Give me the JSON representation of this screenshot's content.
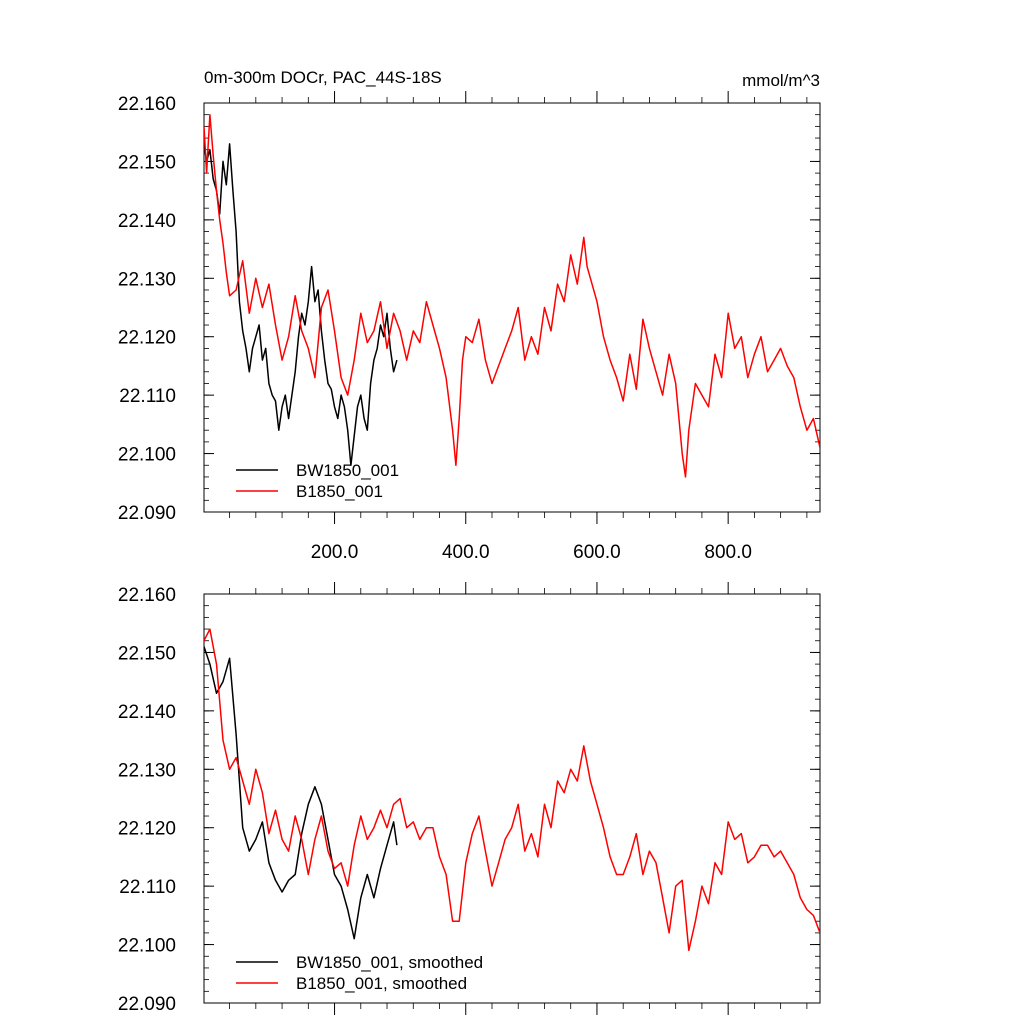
{
  "chart_data": [
    {
      "type": "line",
      "title": "0m-300m DOCr, PAC_44S-18S",
      "units": "mmol/m^3",
      "xlim": [
        1,
        940
      ],
      "ylim": [
        22.09,
        22.16
      ],
      "x_ticks": [
        "200.0",
        "400.0",
        "600.0",
        "800.0"
      ],
      "x_tick_values": [
        200,
        400,
        600,
        800
      ],
      "y_ticks": [
        "22.090",
        "22.100",
        "22.110",
        "22.120",
        "22.130",
        "22.140",
        "22.150",
        "22.160"
      ],
      "y_tick_values": [
        22.09,
        22.1,
        22.11,
        22.12,
        22.13,
        22.14,
        22.15,
        22.16
      ],
      "legend_position": "bottom-left",
      "series": [
        {
          "name": "BW1850_001",
          "color": "#000000",
          "x": [
            1,
            5,
            10,
            15,
            20,
            25,
            30,
            35,
            40,
            45,
            50,
            55,
            60,
            65,
            70,
            75,
            80,
            85,
            90,
            95,
            100,
            105,
            110,
            115,
            120,
            125,
            130,
            135,
            140,
            145,
            150,
            155,
            160,
            165,
            170,
            175,
            180,
            185,
            190,
            195,
            200,
            205,
            210,
            215,
            220,
            225,
            230,
            235,
            240,
            245,
            250,
            255,
            260,
            265,
            270,
            275,
            280,
            285,
            290,
            295
          ],
          "y": [
            22.153,
            22.15,
            22.152,
            22.147,
            22.145,
            22.141,
            22.15,
            22.146,
            22.153,
            22.145,
            22.138,
            22.126,
            22.121,
            22.118,
            22.114,
            22.118,
            22.12,
            22.122,
            22.116,
            22.118,
            22.112,
            22.11,
            22.109,
            22.104,
            22.108,
            22.11,
            22.106,
            22.11,
            22.114,
            22.12,
            22.124,
            22.122,
            22.126,
            22.132,
            22.126,
            22.128,
            22.121,
            22.116,
            22.112,
            22.111,
            22.108,
            22.106,
            22.11,
            22.108,
            22.104,
            22.098,
            22.103,
            22.108,
            22.11,
            22.106,
            22.104,
            22.112,
            22.116,
            22.118,
            22.122,
            22.12,
            22.124,
            22.118,
            22.114,
            22.116
          ]
        },
        {
          "name": "B1850_001",
          "color": "#ff0000",
          "x": [
            1,
            5,
            10,
            15,
            20,
            25,
            30,
            35,
            40,
            50,
            60,
            70,
            80,
            90,
            100,
            110,
            120,
            130,
            140,
            150,
            160,
            170,
            180,
            190,
            200,
            210,
            220,
            230,
            240,
            250,
            260,
            270,
            280,
            290,
            300,
            310,
            320,
            330,
            340,
            350,
            360,
            370,
            380,
            385,
            390,
            395,
            400,
            410,
            420,
            430,
            440,
            450,
            460,
            470,
            480,
            490,
            500,
            510,
            520,
            530,
            540,
            550,
            560,
            570,
            580,
            585,
            590,
            600,
            610,
            620,
            630,
            640,
            650,
            660,
            670,
            680,
            690,
            700,
            710,
            720,
            730,
            735,
            740,
            750,
            760,
            770,
            780,
            790,
            800,
            810,
            820,
            830,
            840,
            850,
            860,
            870,
            880,
            890,
            900,
            910,
            920,
            930,
            940
          ],
          "y": [
            22.156,
            22.148,
            22.158,
            22.151,
            22.145,
            22.14,
            22.136,
            22.131,
            22.127,
            22.128,
            22.133,
            22.124,
            22.13,
            22.125,
            22.129,
            22.122,
            22.116,
            22.12,
            22.127,
            22.121,
            22.118,
            22.113,
            22.125,
            22.128,
            22.121,
            22.113,
            22.11,
            22.116,
            22.124,
            22.119,
            22.121,
            22.126,
            22.118,
            22.124,
            22.121,
            22.116,
            22.121,
            22.119,
            22.126,
            22.122,
            22.118,
            22.113,
            22.104,
            22.098,
            22.106,
            22.116,
            22.12,
            22.119,
            22.123,
            22.116,
            22.112,
            22.115,
            22.118,
            22.121,
            22.125,
            22.116,
            22.12,
            22.117,
            22.125,
            22.121,
            22.129,
            22.126,
            22.134,
            22.129,
            22.137,
            22.132,
            22.13,
            22.126,
            22.12,
            22.116,
            22.113,
            22.109,
            22.117,
            22.111,
            22.123,
            22.118,
            22.114,
            22.11,
            22.117,
            22.112,
            22.1,
            22.096,
            22.104,
            22.112,
            22.11,
            22.108,
            22.117,
            22.113,
            22.124,
            22.118,
            22.12,
            22.113,
            22.117,
            22.12,
            22.114,
            22.116,
            22.118,
            22.115,
            22.113,
            22.108,
            22.104,
            22.106,
            22.101
          ]
        }
      ]
    },
    {
      "type": "line",
      "title": "",
      "xlim": [
        1,
        940
      ],
      "ylim": [
        22.09,
        22.16
      ],
      "y_ticks": [
        "22.090",
        "22.100",
        "22.110",
        "22.120",
        "22.130",
        "22.140",
        "22.150",
        "22.160"
      ],
      "y_tick_values": [
        22.09,
        22.1,
        22.11,
        22.12,
        22.13,
        22.14,
        22.15,
        22.16
      ],
      "legend_position": "bottom-left",
      "series": [
        {
          "name": "BW1850_001, smoothed",
          "color": "#000000",
          "x": [
            1,
            10,
            20,
            30,
            40,
            50,
            60,
            70,
            80,
            90,
            100,
            110,
            120,
            130,
            140,
            150,
            160,
            170,
            180,
            190,
            200,
            210,
            220,
            230,
            240,
            250,
            260,
            270,
            280,
            290,
            295
          ],
          "y": [
            22.151,
            22.148,
            22.143,
            22.145,
            22.149,
            22.136,
            22.12,
            22.116,
            22.118,
            22.121,
            22.114,
            22.111,
            22.109,
            22.111,
            22.112,
            22.119,
            22.124,
            22.127,
            22.124,
            22.118,
            22.112,
            22.11,
            22.106,
            22.101,
            22.108,
            22.112,
            22.108,
            22.113,
            22.117,
            22.121,
            22.117
          ]
        },
        {
          "name": "B1850_001, smoothed",
          "color": "#ff0000",
          "x": [
            1,
            10,
            20,
            30,
            40,
            50,
            60,
            70,
            80,
            90,
            100,
            110,
            120,
            130,
            140,
            150,
            160,
            170,
            180,
            190,
            200,
            210,
            220,
            230,
            240,
            250,
            260,
            270,
            280,
            290,
            300,
            310,
            320,
            330,
            340,
            350,
            360,
            370,
            380,
            390,
            400,
            410,
            420,
            430,
            440,
            450,
            460,
            470,
            480,
            490,
            500,
            510,
            520,
            530,
            540,
            550,
            560,
            570,
            580,
            590,
            600,
            610,
            620,
            630,
            640,
            650,
            660,
            670,
            680,
            690,
            700,
            710,
            720,
            730,
            740,
            750,
            760,
            770,
            780,
            790,
            800,
            810,
            820,
            830,
            840,
            850,
            860,
            870,
            880,
            890,
            900,
            910,
            920,
            930,
            940
          ],
          "y": [
            22.152,
            22.154,
            22.148,
            22.135,
            22.13,
            22.132,
            22.128,
            22.124,
            22.13,
            22.126,
            22.119,
            22.123,
            22.118,
            22.116,
            22.122,
            22.118,
            22.112,
            22.118,
            22.122,
            22.116,
            22.113,
            22.114,
            22.11,
            22.117,
            22.122,
            22.118,
            22.12,
            22.123,
            22.12,
            22.124,
            22.125,
            22.12,
            22.121,
            22.118,
            22.12,
            22.12,
            22.115,
            22.112,
            22.104,
            22.104,
            22.114,
            22.119,
            22.122,
            22.116,
            22.11,
            22.114,
            22.118,
            22.12,
            22.124,
            22.116,
            22.119,
            22.115,
            22.124,
            22.12,
            22.128,
            22.126,
            22.13,
            22.128,
            22.134,
            22.128,
            22.124,
            22.12,
            22.115,
            22.112,
            22.112,
            22.115,
            22.119,
            22.112,
            22.116,
            22.114,
            22.108,
            22.102,
            22.11,
            22.111,
            22.099,
            22.104,
            22.11,
            22.107,
            22.114,
            22.112,
            22.121,
            22.118,
            22.119,
            22.114,
            22.115,
            22.117,
            22.117,
            22.115,
            22.116,
            22.114,
            22.112,
            22.108,
            22.106,
            22.105,
            22.102
          ]
        }
      ]
    }
  ]
}
